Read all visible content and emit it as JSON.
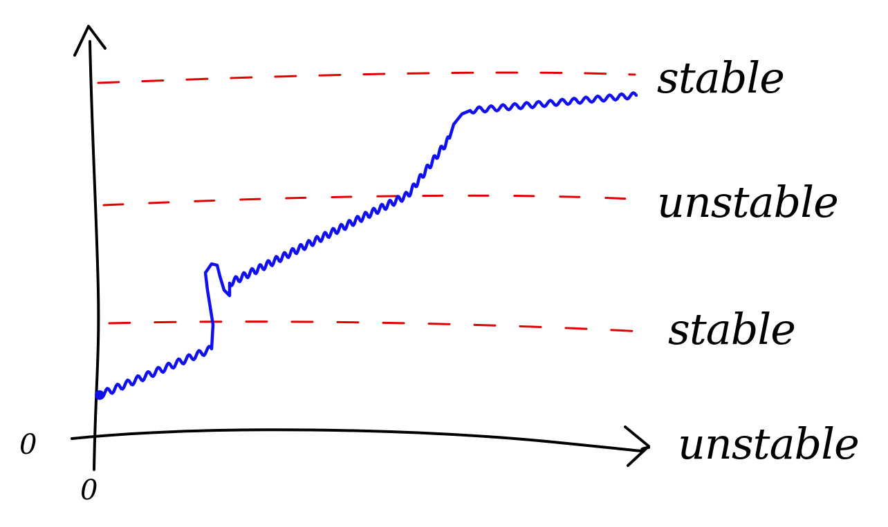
{
  "diagram": {
    "levels": [
      {
        "label": "stable"
      },
      {
        "label": "unstable"
      },
      {
        "label": "stable"
      }
    ],
    "x_axis_label": "unstable",
    "origin_y_label": "0",
    "origin_x_label": "0",
    "colors": {
      "axes": "#000000",
      "curve": "#1010ee",
      "level_lines": "#e00000",
      "text": "#000000"
    }
  }
}
